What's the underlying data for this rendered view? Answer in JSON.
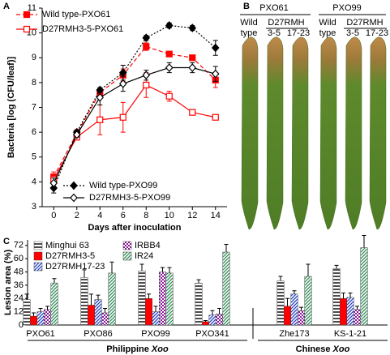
{
  "panel_labels": [
    "A",
    "B",
    "C"
  ],
  "chart_data": [
    {
      "type": "line",
      "xlabel": "Days after inoculation",
      "ylabel": "Bacteria [log (CFU/leaf)]",
      "x": [
        0,
        2,
        4,
        6,
        8,
        10,
        12,
        14
      ],
      "xlim": [
        -1,
        15
      ],
      "xticks": [
        0,
        2,
        4,
        6,
        8,
        10,
        12,
        14
      ],
      "ylim": [
        3,
        11
      ],
      "yticks": [
        3,
        4,
        5,
        6,
        7,
        8,
        9,
        10,
        11
      ],
      "series": [
        {
          "name": "Wild type-PXO61",
          "color": "#ff0000",
          "dash": "dashed",
          "marker": "square",
          "filled": true,
          "values": [
            4.2,
            5.95,
            7.6,
            8.3,
            9.45,
            9.15,
            9.0,
            8.1
          ],
          "errors": [
            0.2,
            0.1,
            0.15,
            0.25,
            0.15,
            0.1,
            0.1,
            0.3
          ]
        },
        {
          "name": "D27RMH3-5-PXO61",
          "color": "#ff0000",
          "dash": "solid",
          "marker": "square",
          "filled": false,
          "values": [
            4.1,
            5.8,
            6.5,
            6.6,
            7.9,
            7.45,
            6.8,
            6.6
          ],
          "errors": [
            0.2,
            0.1,
            0.6,
            0.6,
            0.5,
            0.2,
            0.1,
            0.1
          ]
        },
        {
          "name": "Wild type-PXO99",
          "color": "#000000",
          "dash": "dotted",
          "marker": "diamond",
          "filled": true,
          "values": [
            3.75,
            6.0,
            7.7,
            8.4,
            9.8,
            10.3,
            10.2,
            9.4
          ],
          "errors": [
            0.2,
            0.1,
            0.1,
            0.3,
            0.1,
            0.1,
            0.1,
            0.3
          ]
        },
        {
          "name": "D27RMH3-5-PXO99",
          "color": "#000000",
          "dash": "solid",
          "marker": "diamond",
          "filled": false,
          "values": [
            3.95,
            5.9,
            7.4,
            7.95,
            8.3,
            8.6,
            8.6,
            8.35
          ],
          "errors": [
            0.2,
            0.1,
            0.3,
            0.3,
            0.2,
            0.2,
            0.2,
            0.3
          ]
        }
      ]
    },
    {
      "type": "bar",
      "ylabel": "Lesion area (%)",
      "categories": [
        "PXO61",
        "PXO86",
        "PXO99",
        "PXO341",
        "Zhe173",
        "KS-1-21"
      ],
      "group_labels": [
        [
          "Philippine",
          "Xoo"
        ],
        [
          "Chinese",
          "Xoo"
        ]
      ],
      "ylim": [
        0,
        77
      ],
      "yticks": [
        0,
        12,
        24,
        36,
        48,
        60,
        72
      ],
      "series": [
        {
          "name": "Minghui 63",
          "color": "#000000",
          "hatch": "horizontal",
          "values": [
            23,
            43,
            49,
            38,
            40,
            51
          ],
          "errors": [
            5,
            7,
            6,
            3,
            4,
            3
          ]
        },
        {
          "name": "D27RMH3-5",
          "color": "#ff0000",
          "hatch": "solid",
          "values": [
            8,
            18,
            24,
            3,
            17,
            24
          ],
          "errors": [
            3,
            10,
            4,
            1,
            7,
            5
          ]
        },
        {
          "name": "D27RMH17-23",
          "color": "#1f3fbf",
          "hatch": "diagonal",
          "values": [
            12,
            23,
            12,
            9,
            28,
            25
          ],
          "errors": [
            3,
            4,
            5,
            4,
            3,
            4
          ]
        },
        {
          "name": "IRBB4",
          "color": "#8b1a9a",
          "hatch": "checker",
          "values": [
            14,
            11,
            48,
            10,
            13,
            14
          ],
          "errors": [
            3,
            4,
            4,
            5,
            3,
            3
          ]
        },
        {
          "name": "IR24",
          "color": "#2e8b57",
          "hatch": "diagonal",
          "values": [
            38,
            47,
            47,
            66,
            44,
            70
          ],
          "errors": [
            4,
            10,
            5,
            7,
            11,
            11
          ]
        }
      ]
    }
  ],
  "photo": {
    "strains": [
      "PXO61",
      "PXO99"
    ],
    "wild": [
      "Wild",
      "type"
    ],
    "mutant": "D27RMH",
    "lines": [
      "3-5",
      "17-23"
    ]
  }
}
